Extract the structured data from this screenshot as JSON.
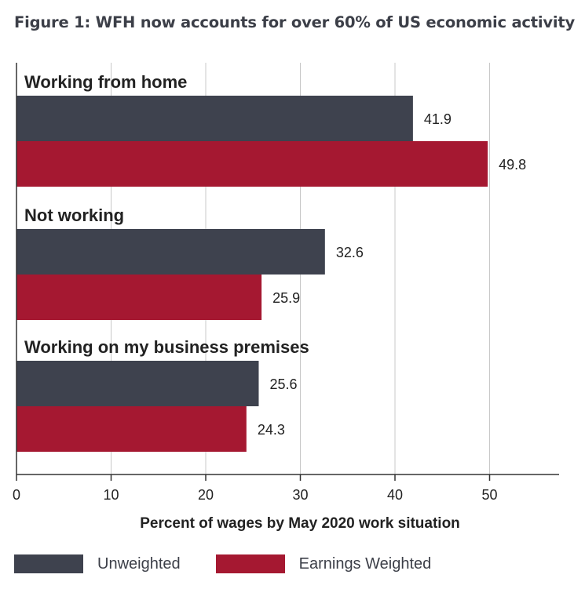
{
  "figure": {
    "title": "Figure 1: WFH now accounts for over 60% of US economic activity"
  },
  "colors": {
    "unweighted": "#3e424e",
    "weighted": "#a51831",
    "grid": "#c8c8c8",
    "axis": "#333333",
    "text": "#222222"
  },
  "chart_data": {
    "type": "bar",
    "orientation": "horizontal",
    "categories": [
      "Working from home",
      "Not working",
      "Working on my business premises"
    ],
    "series": [
      {
        "name": "Unweighted",
        "values": [
          41.9,
          32.6,
          25.6
        ]
      },
      {
        "name": "Earnings Weighted",
        "values": [
          49.8,
          25.9,
          24.3
        ]
      }
    ],
    "xlabel": "Percent of wages by May 2020 work situation",
    "xlim": [
      0,
      57
    ],
    "xticks": [
      0,
      10,
      20,
      30,
      40,
      50
    ],
    "grid": true,
    "legend": "bottom"
  },
  "legend": {
    "items": [
      {
        "label": "Unweighted",
        "color": "#3e424e"
      },
      {
        "label": "Earnings Weighted",
        "color": "#a51831"
      }
    ]
  }
}
